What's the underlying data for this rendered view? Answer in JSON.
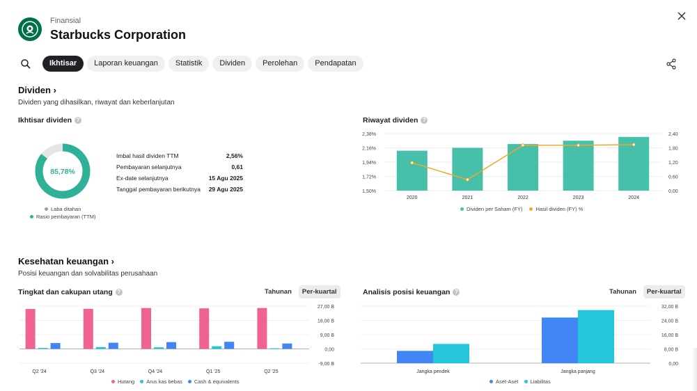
{
  "header": {
    "kicker": "Finansial",
    "company": "Starbucks Corporation"
  },
  "tabs": [
    "Ikhtisar",
    "Laporan keuangan",
    "Statistik",
    "Dividen",
    "Perolehan",
    "Pendapatan"
  ],
  "active_tab": "Ikhtisar",
  "colors": {
    "teal": "#2eb196",
    "bar_teal": "#46c0a8",
    "orange": "#f5a623",
    "pink": "#f06292",
    "cyan": "#26c6da",
    "blue": "#4285f4",
    "gray": "#e0e0e0"
  },
  "dividen": {
    "title": "Dividen ›",
    "subtitle": "Dividen yang dihasilkan, riwayat dan keberlanjutan",
    "overview": {
      "title": "Ikhtisar dividen",
      "donut_label": "85,78%",
      "payout_ratio": 0.8578,
      "rows": [
        {
          "label": "Imbal hasil dividen TTM",
          "value": "2,56%"
        },
        {
          "label": "Pembayaran selanjutnya",
          "value": "0,61"
        },
        {
          "label": "Ex-date selanjutnya",
          "value": "15 Agu 2025"
        },
        {
          "label": "Tanggal pembayaran berikutnya",
          "value": "29 Agu 2025"
        }
      ],
      "legend": [
        "Laba ditahan",
        "Rasio pembayaran (TTM)"
      ]
    },
    "history": {
      "title": "Riwayat dividen",
      "legend": [
        "Dividen per Saham (FY)",
        "Hasil dividen (FY) %"
      ]
    }
  },
  "health": {
    "title": "Kesehatan keuangan ›",
    "subtitle": "Posisi keuangan dan solvabilitas perusahaan",
    "debt": {
      "title": "Tingkat dan cakupan utang",
      "toggle": [
        "Tahunan",
        "Per-kuartal"
      ],
      "legend": [
        "Hutang",
        "Arus kas bebas",
        "Cash & equivalents"
      ]
    },
    "position": {
      "title": "Analisis posisi keuangan",
      "toggle": [
        "Tahunan",
        "Per-kuartal"
      ],
      "legend": [
        "Aset-Aset",
        "Liabilitas"
      ]
    }
  },
  "chart_data": [
    {
      "type": "bar",
      "title": "Riwayat dividen",
      "categories": [
        "2020",
        "2021",
        "2022",
        "2023",
        "2024"
      ],
      "series": [
        {
          "name": "Dividen per Saham (FY)",
          "type": "bar",
          "axis": "right",
          "values": [
            1.68,
            1.8,
            1.96,
            2.1,
            2.26
          ]
        },
        {
          "name": "Hasil dividen (FY) %",
          "type": "line",
          "axis": "left",
          "values": [
            1.93,
            1.67,
            2.2,
            2.2,
            2.21
          ]
        }
      ],
      "y_left_ticks": [
        "2,38%",
        "2,16%",
        "1,94%",
        "1,72%",
        "1,50%"
      ],
      "y_left_lim": [
        1.5,
        2.38
      ],
      "y_right_ticks": [
        "2,40",
        "1,80",
        "1,20",
        "0,60",
        "0,00"
      ],
      "y_right_lim": [
        0,
        2.4
      ]
    },
    {
      "type": "bar",
      "title": "Tingkat dan cakupan utang",
      "categories": [
        "Q2 '24",
        "Q3 '24",
        "Q4 '24",
        "Q1 '25",
        "Q2 '25"
      ],
      "series": [
        {
          "name": "Hutang",
          "values": [
            25.2,
            25.3,
            25.8,
            25.6,
            25.8
          ]
        },
        {
          "name": "Arus kas bebas",
          "values": [
            0.6,
            1.2,
            1.0,
            1.7,
            0.4
          ]
        },
        {
          "name": "Cash & equivalents",
          "values": [
            3.7,
            3.9,
            4.3,
            4.5,
            3.4
          ]
        }
      ],
      "y_ticks": [
        "27,00 B",
        "18,00 B",
        "9,00 B",
        "0,00",
        "-9,00 B"
      ],
      "ylim": [
        -9,
        27
      ]
    },
    {
      "type": "bar",
      "title": "Analisis posisi keuangan",
      "categories": [
        "Jangka pendek",
        "Jangka panjang"
      ],
      "series": [
        {
          "name": "Aset-Aset",
          "values": [
            6.9,
            25.6
          ]
        },
        {
          "name": "Liabilitas",
          "values": [
            10.8,
            29.8
          ]
        }
      ],
      "y_ticks": [
        "32,00 B",
        "24,00 B",
        "16,00 B",
        "8,00 B",
        "0,00"
      ],
      "ylim": [
        0,
        32
      ]
    }
  ]
}
